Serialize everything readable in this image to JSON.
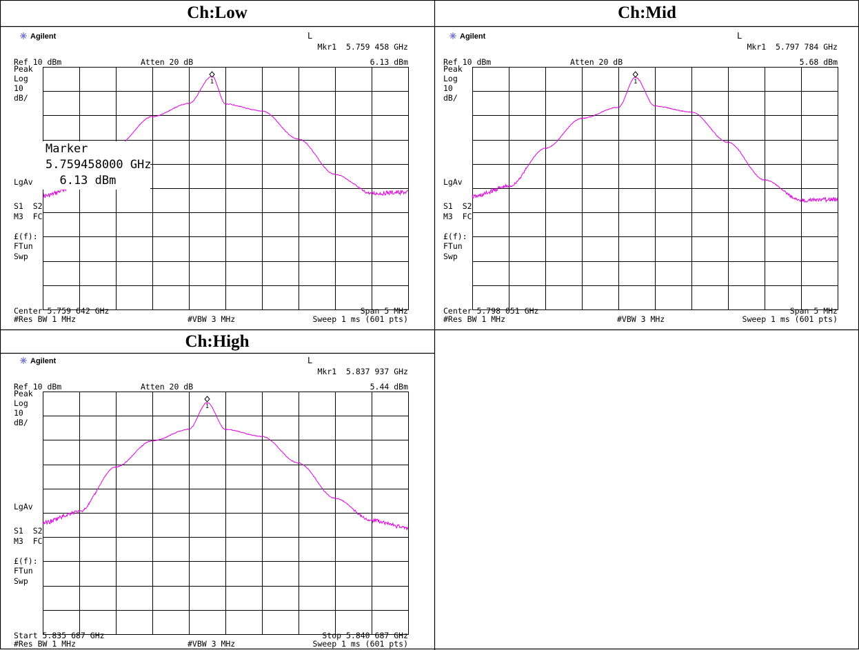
{
  "colors": {
    "trace": "#e000e0",
    "grid": "#000000",
    "background": "#ffffff",
    "logo": "#7777cc"
  },
  "panels": [
    {
      "title": "Ch:Low",
      "brand": "Agilent",
      "trigger_flag": "L",
      "marker_readout": "Mkr1  5.759 458 GHz",
      "marker_level": "6.13 dBm",
      "ref_level": "Ref 10 dBm",
      "attenuation": "Atten 20 dB",
      "side_labels": [
        "Peak",
        "Log",
        "10",
        "dB/",
        "LgAv",
        "S1  S2",
        "M3  FC",
        "£(f):",
        "FTun",
        "Swp"
      ],
      "marker_label": "1",
      "marker_popup": [
        "Marker",
        "5.759458000 GHz",
        "  6.13 dBm"
      ],
      "footer_left_1": "Center 5.759 642 GHz",
      "footer_right_1": "Span 5 MHz",
      "footer_left_2": "#Res BW 1 MHz",
      "footer_mid_2": "#VBW 3 MHz",
      "footer_right_2": "Sweep 1 ms (601 pts)"
    },
    {
      "title": "Ch:Mid",
      "brand": "Agilent",
      "trigger_flag": "L",
      "marker_readout": "Mkr1  5.797 784 GHz",
      "marker_level": "5.68 dBm",
      "ref_level": "Ref 10 dBm",
      "attenuation": "Atten 20 dB",
      "side_labels": [
        "Peak",
        "Log",
        "10",
        "dB/",
        "LgAv",
        "S1  S2",
        "M3  FC",
        "£(f):",
        "FTun",
        "Swp"
      ],
      "marker_label": "1",
      "marker_popup": [],
      "footer_left_1": "Center 5.798 051 GHz",
      "footer_right_1": "Span 5 MHz",
      "footer_left_2": "#Res BW 1 MHz",
      "footer_mid_2": "#VBW 3 MHz",
      "footer_right_2": "Sweep 1 ms (601 pts)"
    },
    {
      "title": "Ch:High",
      "brand": "Agilent",
      "trigger_flag": "L",
      "marker_readout": "Mkr1  5.837 937 GHz",
      "marker_level": "5.44 dBm",
      "ref_level": "Ref 10 dBm",
      "attenuation": "Atten 20 dB",
      "side_labels": [
        "Peak",
        "Log",
        "10",
        "dB/",
        "LgAv",
        "S1  S2",
        "M3  FC",
        "£(f):",
        "FTun",
        "Swp"
      ],
      "marker_label": "1",
      "marker_popup": [],
      "footer_left_1": "Start 5.835 687 GHz",
      "footer_right_1": "Stop 5.840 687 GHz",
      "footer_left_2": "#Res BW 1 MHz",
      "footer_mid_2": "#VBW 3 MHz",
      "footer_right_2": "Sweep 1 ms (601 pts)"
    },
    {
      "title": ""
    }
  ],
  "chart_data": [
    {
      "type": "line",
      "x_unit": "GHz",
      "y_unit": "dBm",
      "xlim": [
        5.757142,
        5.762142
      ],
      "ylim": [
        -90,
        10
      ],
      "grid": true,
      "series": [
        {
          "x": [
            5.757142,
            5.757642,
            5.758142,
            5.758642,
            5.759142,
            5.759458,
            5.759642,
            5.760142,
            5.760642,
            5.761142,
            5.761642,
            5.762142
          ],
          "y": [
            -43.3,
            -38.9,
            -22.6,
            -10.5,
            -5.1,
            6.13,
            -5.3,
            -8.2,
            -19.8,
            -34.3,
            -42.2,
            -41.7
          ]
        }
      ],
      "marker": {
        "x": 5.759458,
        "y": 6.13
      }
    },
    {
      "type": "line",
      "x_unit": "GHz",
      "y_unit": "dBm",
      "xlim": [
        5.795551,
        5.800551
      ],
      "ylim": [
        -90,
        10
      ],
      "grid": true,
      "series": [
        {
          "x": [
            5.795551,
            5.796051,
            5.796551,
            5.797051,
            5.797551,
            5.797784,
            5.798051,
            5.798551,
            5.799051,
            5.799551,
            5.800051,
            5.800551
          ],
          "y": [
            -43.6,
            -39.3,
            -23.6,
            -11.2,
            -6.7,
            5.68,
            -6.2,
            -8.6,
            -21.1,
            -36.6,
            -45.0,
            -44.7
          ]
        }
      ],
      "marker": {
        "x": 5.797784,
        "y": 5.68
      }
    },
    {
      "type": "line",
      "x_unit": "GHz",
      "y_unit": "dBm",
      "xlim": [
        5.835687,
        5.840687
      ],
      "ylim": [
        -90,
        10
      ],
      "grid": true,
      "series": [
        {
          "x": [
            5.835687,
            5.836187,
            5.836687,
            5.837187,
            5.837687,
            5.837937,
            5.838187,
            5.838687,
            5.839187,
            5.839687,
            5.840187,
            5.840687
          ],
          "y": [
            -44.1,
            -39.5,
            -21.1,
            -10.3,
            -5.6,
            5.44,
            -5.6,
            -8.5,
            -19.5,
            -34.0,
            -43.1,
            -46.3
          ]
        }
      ],
      "marker": {
        "x": 5.837937,
        "y": 5.44
      }
    }
  ]
}
